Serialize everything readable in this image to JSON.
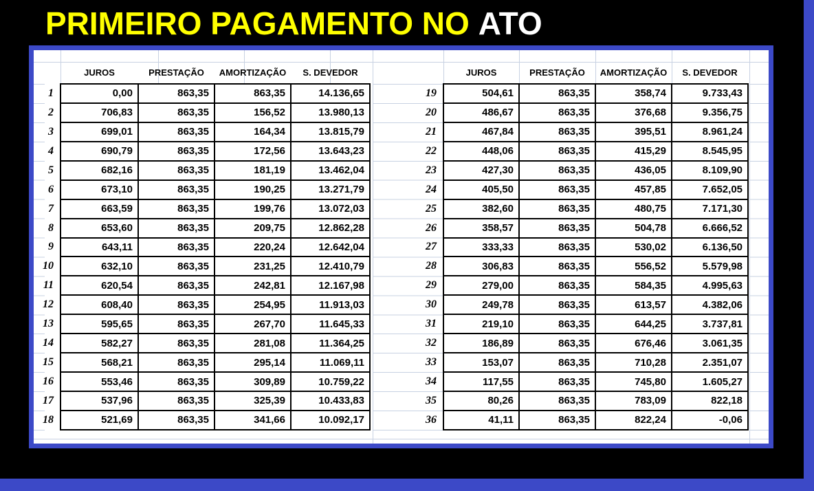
{
  "title": {
    "highlight": "PRIMEIRO PAGAMENTO NO",
    "suffix": "ATO"
  },
  "colors": {
    "background": "#000000",
    "accent_blue": "#3c49c7",
    "title_yellow": "#ffff00",
    "title_white": "#ffffff",
    "gridline": "#c7d1e2",
    "cell_border": "#000000"
  },
  "table": {
    "columns": [
      "JUROS",
      "PRESTAÇÃO",
      "AMORTIZAÇÃO",
      "S. DEVEDOR"
    ],
    "left_rows": [
      [
        "1",
        "0,00",
        "863,35",
        "863,35",
        "14.136,65"
      ],
      [
        "2",
        "706,83",
        "863,35",
        "156,52",
        "13.980,13"
      ],
      [
        "3",
        "699,01",
        "863,35",
        "164,34",
        "13.815,79"
      ],
      [
        "4",
        "690,79",
        "863,35",
        "172,56",
        "13.643,23"
      ],
      [
        "5",
        "682,16",
        "863,35",
        "181,19",
        "13.462,04"
      ],
      [
        "6",
        "673,10",
        "863,35",
        "190,25",
        "13.271,79"
      ],
      [
        "7",
        "663,59",
        "863,35",
        "199,76",
        "13.072,03"
      ],
      [
        "8",
        "653,60",
        "863,35",
        "209,75",
        "12.862,28"
      ],
      [
        "9",
        "643,11",
        "863,35",
        "220,24",
        "12.642,04"
      ],
      [
        "10",
        "632,10",
        "863,35",
        "231,25",
        "12.410,79"
      ],
      [
        "11",
        "620,54",
        "863,35",
        "242,81",
        "12.167,98"
      ],
      [
        "12",
        "608,40",
        "863,35",
        "254,95",
        "11.913,03"
      ],
      [
        "13",
        "595,65",
        "863,35",
        "267,70",
        "11.645,33"
      ],
      [
        "14",
        "582,27",
        "863,35",
        "281,08",
        "11.364,25"
      ],
      [
        "15",
        "568,21",
        "863,35",
        "295,14",
        "11.069,11"
      ],
      [
        "16",
        "553,46",
        "863,35",
        "309,89",
        "10.759,22"
      ],
      [
        "17",
        "537,96",
        "863,35",
        "325,39",
        "10.433,83"
      ],
      [
        "18",
        "521,69",
        "863,35",
        "341,66",
        "10.092,17"
      ]
    ],
    "right_rows": [
      [
        "19",
        "504,61",
        "863,35",
        "358,74",
        "9.733,43"
      ],
      [
        "20",
        "486,67",
        "863,35",
        "376,68",
        "9.356,75"
      ],
      [
        "21",
        "467,84",
        "863,35",
        "395,51",
        "8.961,24"
      ],
      [
        "22",
        "448,06",
        "863,35",
        "415,29",
        "8.545,95"
      ],
      [
        "23",
        "427,30",
        "863,35",
        "436,05",
        "8.109,90"
      ],
      [
        "24",
        "405,50",
        "863,35",
        "457,85",
        "7.652,05"
      ],
      [
        "25",
        "382,60",
        "863,35",
        "480,75",
        "7.171,30"
      ],
      [
        "26",
        "358,57",
        "863,35",
        "504,78",
        "6.666,52"
      ],
      [
        "27",
        "333,33",
        "863,35",
        "530,02",
        "6.136,50"
      ],
      [
        "28",
        "306,83",
        "863,35",
        "556,52",
        "5.579,98"
      ],
      [
        "29",
        "279,00",
        "863,35",
        "584,35",
        "4.995,63"
      ],
      [
        "30",
        "249,78",
        "863,35",
        "613,57",
        "4.382,06"
      ],
      [
        "31",
        "219,10",
        "863,35",
        "644,25",
        "3.737,81"
      ],
      [
        "32",
        "186,89",
        "863,35",
        "676,46",
        "3.061,35"
      ],
      [
        "33",
        "153,07",
        "863,35",
        "710,28",
        "2.351,07"
      ],
      [
        "34",
        "117,55",
        "863,35",
        "745,80",
        "1.605,27"
      ],
      [
        "35",
        "80,26",
        "863,35",
        "783,09",
        "822,18"
      ],
      [
        "36",
        "41,11",
        "863,35",
        "822,24",
        "-0,06"
      ]
    ]
  }
}
